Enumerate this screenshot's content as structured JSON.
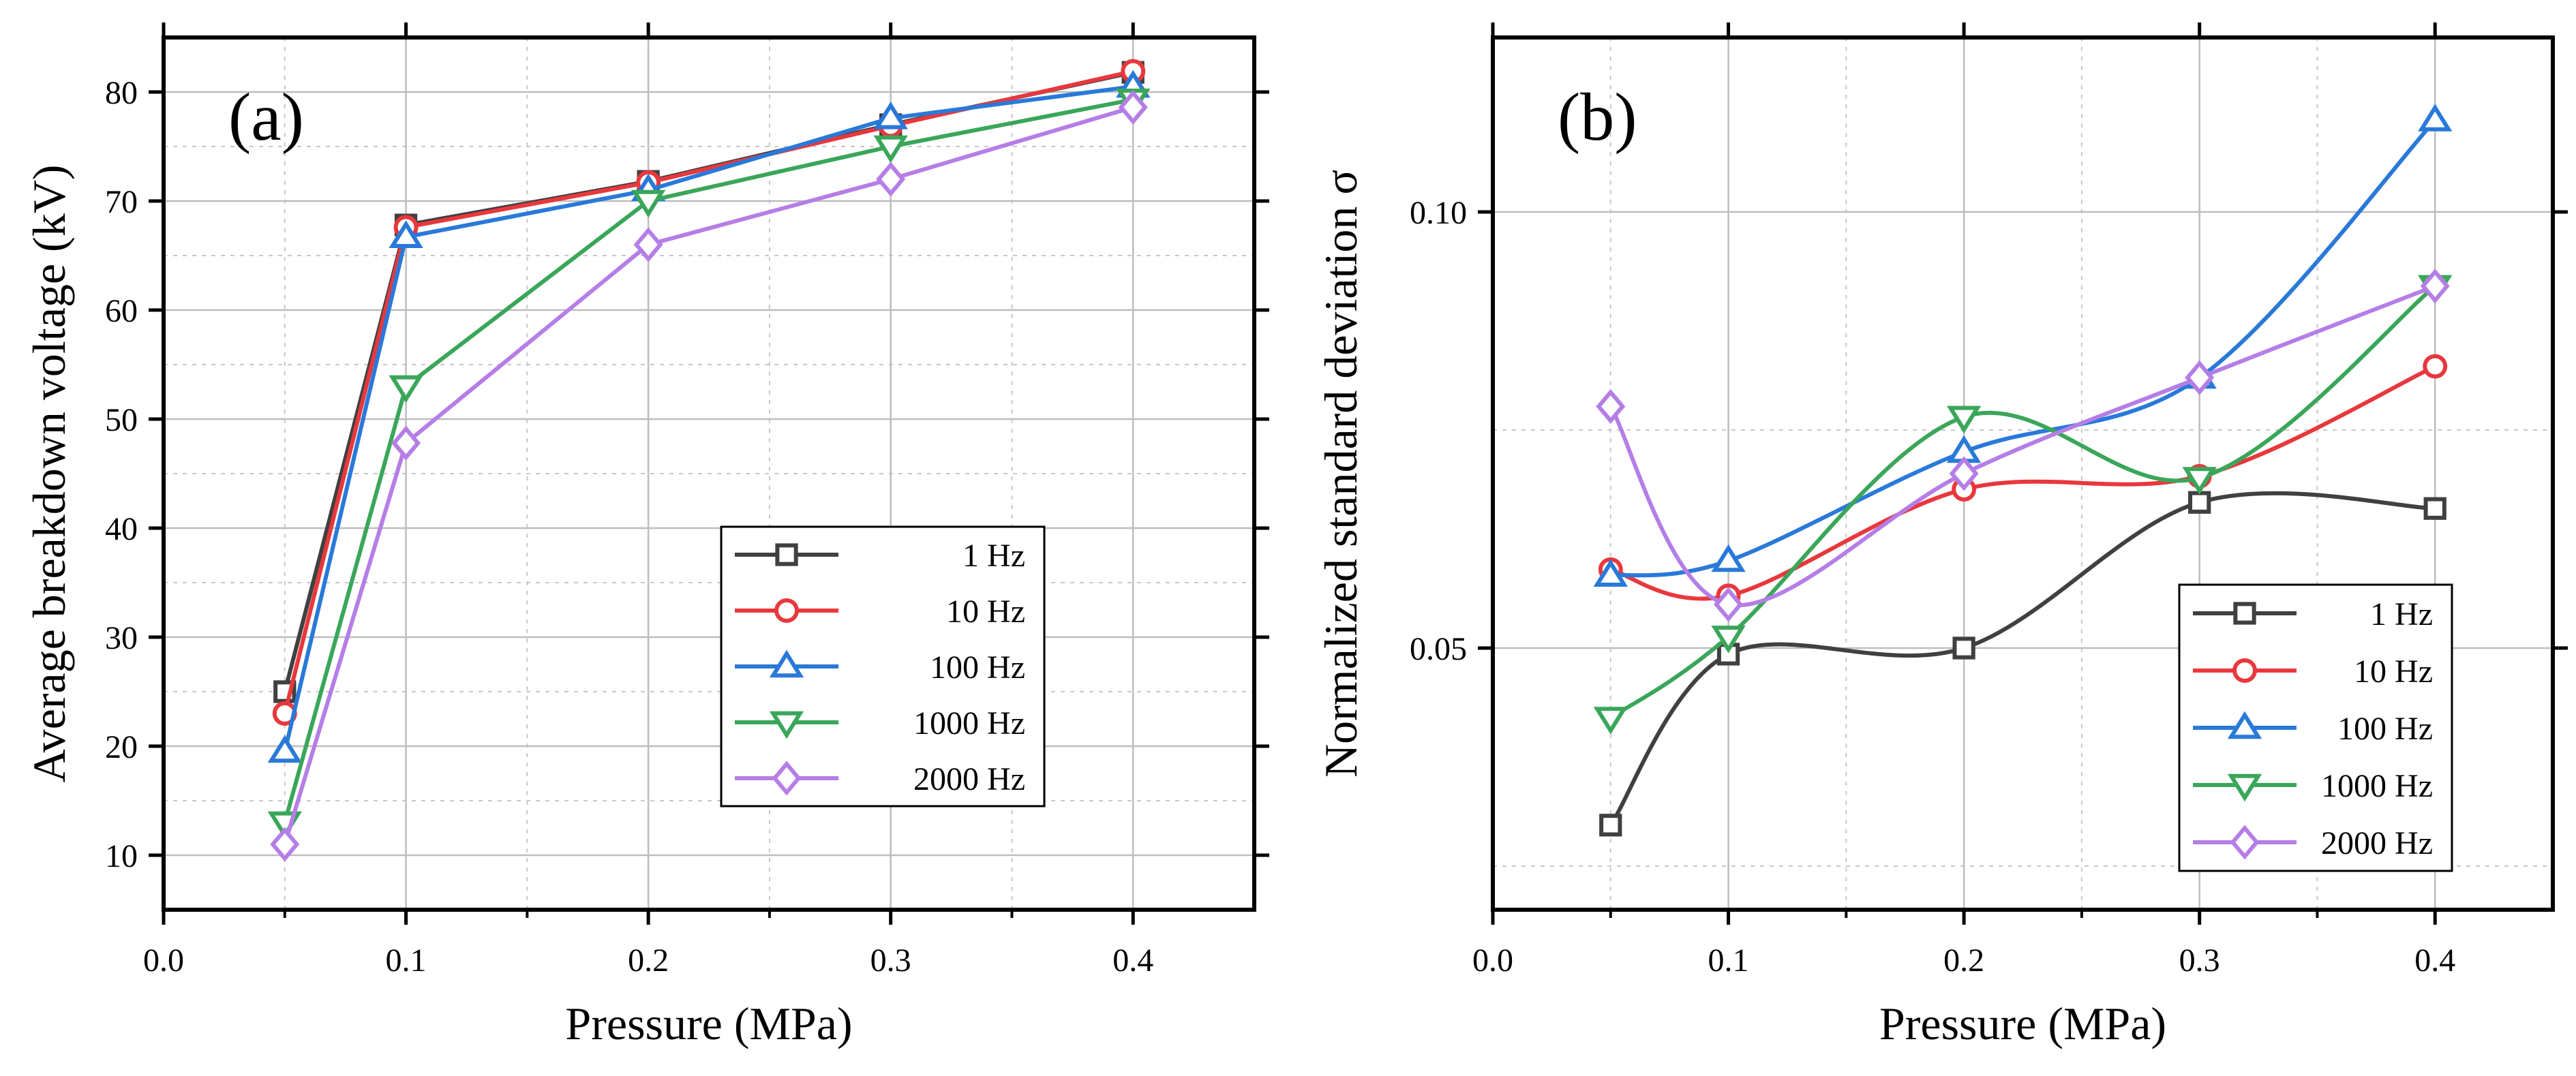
{
  "figure": {
    "description_free": true
  },
  "chart_data": [
    {
      "type": "line",
      "panel_label": "(a)",
      "xlabel": "Pressure (MPa)",
      "ylabel": "Average breakdown voltage (kV)",
      "xlim": [
        0.0,
        0.45
      ],
      "ylim": [
        5,
        85
      ],
      "xticks": [
        0.0,
        0.1,
        0.2,
        0.3,
        0.4
      ],
      "xtick_labels": [
        "0.0",
        "0.1",
        "0.2",
        "0.3",
        "0.4"
      ],
      "yticks": [
        10,
        20,
        30,
        40,
        50,
        60,
        70,
        80
      ],
      "ytick_labels": [
        "10",
        "20",
        "30",
        "40",
        "50",
        "60",
        "70",
        "80"
      ],
      "grid": true,
      "smooth": false,
      "legend_position": "bottom-right",
      "x": [
        0.05,
        0.1,
        0.2,
        0.3,
        0.4
      ],
      "series": [
        {
          "name": "1 Hz",
          "label": "1 Hz",
          "color": "#404040",
          "marker": "square",
          "values": [
            25.0,
            67.8,
            71.8,
            77.0,
            81.8
          ]
        },
        {
          "name": "10 Hz",
          "label": "10  Hz",
          "color": "#e8383d",
          "marker": "circle",
          "values": [
            23.0,
            67.6,
            71.7,
            76.9,
            81.9
          ]
        },
        {
          "name": "100 Hz",
          "label": "100 Hz",
          "color": "#2979d9",
          "marker": "triangle-up",
          "values": [
            19.5,
            66.7,
            71.0,
            77.6,
            80.5
          ]
        },
        {
          "name": "1000 Hz",
          "label": "1000 Hz",
          "color": "#3aa65a",
          "marker": "triangle-down",
          "values": [
            13.0,
            53.0,
            70.0,
            75.0,
            79.3
          ]
        },
        {
          "name": "2000 Hz",
          "label": "2000 Hz",
          "color": "#b57ee6",
          "marker": "diamond",
          "values": [
            11.0,
            47.8,
            66.0,
            72.0,
            78.6
          ]
        }
      ]
    },
    {
      "type": "line",
      "panel_label": "(b)",
      "xlabel": "Pressure (MPa)",
      "ylabel": "Normalized standard deviation σ",
      "xlim": [
        0.0,
        0.45
      ],
      "ylim": [
        0.02,
        0.12
      ],
      "xticks": [
        0.0,
        0.1,
        0.2,
        0.3,
        0.4
      ],
      "xtick_labels": [
        "0.0",
        "0.1",
        "0.2",
        "0.3",
        "0.4"
      ],
      "yticks": [
        0.05,
        0.1
      ],
      "ytick_labels": [
        "0.05",
        "0.10"
      ],
      "grid": true,
      "smooth": true,
      "legend_position": "bottom-right",
      "x": [
        0.05,
        0.1,
        0.2,
        0.3,
        0.4
      ],
      "series": [
        {
          "name": "1 Hz",
          "label": "1 Hz",
          "color": "#404040",
          "marker": "square",
          "values": [
            0.0297,
            0.0493,
            0.05,
            0.0667,
            0.066
          ]
        },
        {
          "name": "10 Hz",
          "label": "10 Hz",
          "color": "#e8383d",
          "marker": "circle",
          "values": [
            0.059,
            0.056,
            0.0682,
            0.0697,
            0.0823
          ]
        },
        {
          "name": "100 Hz",
          "label": "100 Hz",
          "color": "#2979d9",
          "marker": "triangle-up",
          "values": [
            0.0583,
            0.06,
            0.0725,
            0.081,
            0.1105
          ]
        },
        {
          "name": "1000 Hz",
          "label": "1000 Hz",
          "color": "#3aa65a",
          "marker": "triangle-down",
          "values": [
            0.042,
            0.0513,
            0.0765,
            0.0695,
            0.0915
          ]
        },
        {
          "name": "2000 Hz",
          "label": "2000 Hz",
          "color": "#b57ee6",
          "marker": "diamond",
          "values": [
            0.0777,
            0.055,
            0.07,
            0.081,
            0.0915
          ]
        }
      ]
    }
  ]
}
